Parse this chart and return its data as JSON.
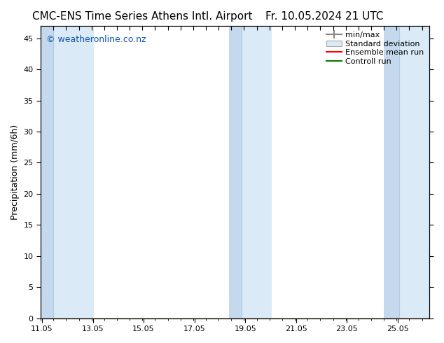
{
  "title_left": "CMC-ENS Time Series Athens Intl. Airport",
  "title_right": "Fr. 10.05.2024 21 UTC",
  "ylabel": "Precipitation (mm/6h)",
  "xlabel": "",
  "watermark": "© weatheronline.co.nz",
  "background_color": "#ffffff",
  "plot_bg_color": "#ffffff",
  "ylim": [
    0,
    47
  ],
  "yticks": [
    0,
    5,
    10,
    15,
    20,
    25,
    30,
    35,
    40,
    45
  ],
  "xlim": [
    11.0,
    26.3
  ],
  "xtick_positions": [
    11.05,
    13.05,
    15.05,
    17.05,
    19.05,
    21.05,
    23.05,
    25.05
  ],
  "xtick_labels": [
    "11.05",
    "13.05",
    "15.05",
    "17.05",
    "19.05",
    "21.05",
    "23.05",
    "25.05"
  ],
  "shade_color_stddev": "#daeaf7",
  "shade_color_minmax": "#c5d9ee",
  "shade_sep_line_color": "#b0cce0",
  "ensemble_mean_color": "#ff0000",
  "control_run_color": "#008000",
  "title_fontsize": 11,
  "tick_fontsize": 8,
  "ylabel_fontsize": 9,
  "watermark_fontsize": 9,
  "watermark_color": "#1155aa",
  "legend_fontsize": 8,
  "stddev_regions": [
    [
      11.0,
      11.5
    ],
    [
      11.5,
      13.1
    ],
    [
      18.4,
      18.9
    ],
    [
      18.9,
      20.1
    ],
    [
      24.5,
      25.1
    ],
    [
      25.1,
      26.3
    ]
  ],
  "minmax_inner_lines": [
    11.0,
    11.5,
    12.1,
    13.0,
    18.4,
    18.9,
    19.5,
    20.1,
    24.5,
    25.1,
    25.7
  ],
  "top_spine_ticks_x": [
    11.0,
    11.5,
    12.0,
    12.5,
    13.0,
    13.5,
    14.0,
    14.5,
    15.0,
    15.5,
    16.0,
    16.5,
    17.0,
    17.5,
    18.0,
    18.5,
    19.0,
    19.5,
    20.0,
    20.5,
    21.0,
    21.5,
    22.0,
    22.5,
    23.0,
    23.5,
    24.0,
    24.5,
    25.0,
    25.5,
    26.0
  ]
}
